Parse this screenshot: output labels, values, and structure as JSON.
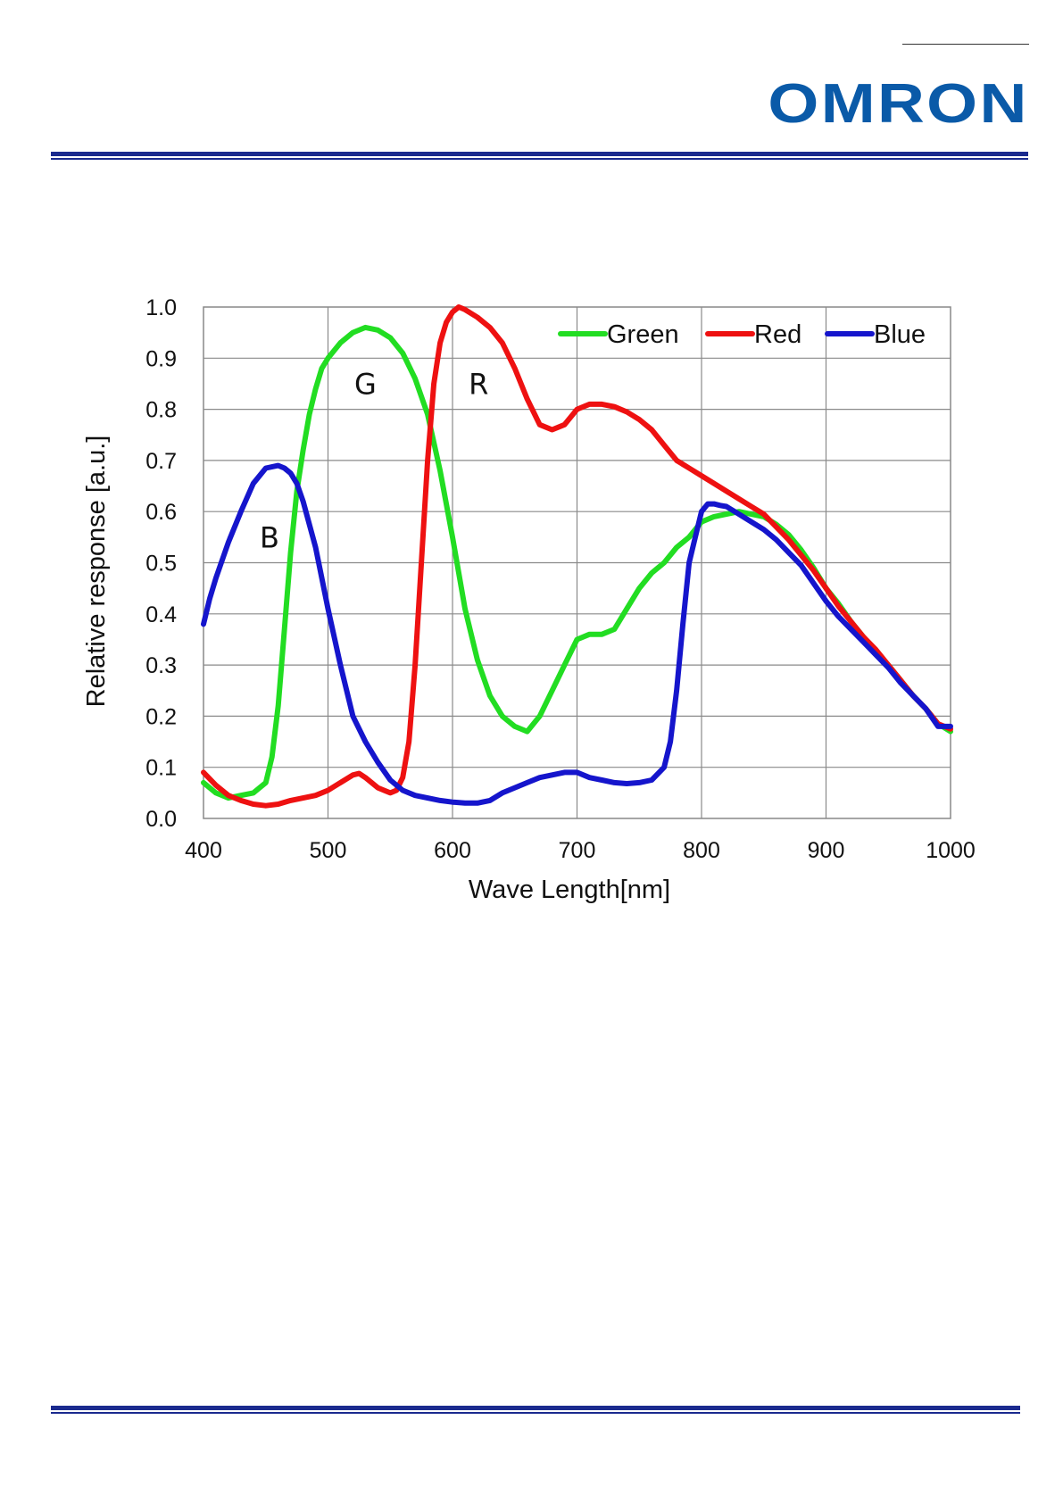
{
  "header": {
    "logo_text": "OMRON",
    "brand_color": "#0a5aa8",
    "band_color": "#1a2a8e"
  },
  "chart_data": {
    "type": "line",
    "title": "",
    "xlabel": "Wave Length[nm]",
    "ylabel": "Relative response [a.u.]",
    "xlim": [
      400,
      1000
    ],
    "ylim": [
      0,
      1.0
    ],
    "xticks": [
      "400",
      "500",
      "600",
      "700",
      "800",
      "900",
      "1000"
    ],
    "yticks": [
      "0.0",
      "0.1",
      "0.2",
      "0.3",
      "0.4",
      "0.5",
      "0.6",
      "0.7",
      "0.8",
      "0.9",
      "1.0"
    ],
    "grid": true,
    "legend_position": "top-right",
    "annotations": [
      {
        "text": "B",
        "x": 453,
        "y": 0.53
      },
      {
        "text": "G",
        "x": 530,
        "y": 0.83
      },
      {
        "text": "R",
        "x": 621,
        "y": 0.83
      }
    ],
    "series": [
      {
        "name": "Green",
        "color": "#22dd22",
        "x": [
          400,
          410,
          420,
          430,
          440,
          450,
          455,
          460,
          465,
          470,
          475,
          480,
          485,
          490,
          495,
          500,
          510,
          520,
          530,
          540,
          550,
          560,
          570,
          580,
          590,
          600,
          610,
          620,
          630,
          640,
          650,
          660,
          670,
          680,
          690,
          700,
          710,
          720,
          730,
          740,
          750,
          760,
          770,
          780,
          790,
          800,
          810,
          820,
          830,
          840,
          850,
          860,
          870,
          880,
          890,
          900,
          910,
          920,
          930,
          940,
          950,
          960,
          970,
          980,
          990,
          1000
        ],
        "y": [
          0.07,
          0.05,
          0.04,
          0.045,
          0.05,
          0.07,
          0.12,
          0.22,
          0.37,
          0.52,
          0.64,
          0.72,
          0.79,
          0.84,
          0.88,
          0.9,
          0.93,
          0.95,
          0.96,
          0.955,
          0.94,
          0.91,
          0.86,
          0.79,
          0.68,
          0.55,
          0.41,
          0.31,
          0.24,
          0.2,
          0.18,
          0.17,
          0.2,
          0.25,
          0.3,
          0.35,
          0.36,
          0.36,
          0.37,
          0.41,
          0.45,
          0.48,
          0.5,
          0.53,
          0.55,
          0.58,
          0.59,
          0.595,
          0.6,
          0.595,
          0.59,
          0.575,
          0.555,
          0.525,
          0.49,
          0.45,
          0.42,
          0.385,
          0.355,
          0.325,
          0.3,
          0.27,
          0.24,
          0.215,
          0.185,
          0.17
        ]
      },
      {
        "name": "Red",
        "color": "#ee1111",
        "x": [
          400,
          410,
          420,
          430,
          440,
          450,
          460,
          470,
          480,
          490,
          500,
          510,
          520,
          525,
          530,
          540,
          550,
          555,
          560,
          565,
          570,
          575,
          580,
          585,
          590,
          595,
          600,
          605,
          610,
          620,
          630,
          640,
          650,
          660,
          670,
          680,
          690,
          700,
          710,
          720,
          730,
          740,
          750,
          760,
          770,
          780,
          790,
          800,
          810,
          820,
          830,
          840,
          850,
          860,
          870,
          880,
          890,
          900,
          910,
          920,
          930,
          940,
          950,
          960,
          970,
          980,
          990,
          1000
        ],
        "y": [
          0.09,
          0.065,
          0.045,
          0.035,
          0.028,
          0.025,
          0.028,
          0.035,
          0.04,
          0.045,
          0.055,
          0.07,
          0.085,
          0.088,
          0.08,
          0.06,
          0.05,
          0.055,
          0.08,
          0.15,
          0.3,
          0.5,
          0.7,
          0.85,
          0.93,
          0.97,
          0.99,
          1.0,
          0.995,
          0.98,
          0.96,
          0.93,
          0.88,
          0.82,
          0.77,
          0.76,
          0.77,
          0.8,
          0.81,
          0.81,
          0.805,
          0.795,
          0.78,
          0.76,
          0.73,
          0.7,
          0.685,
          0.67,
          0.655,
          0.64,
          0.625,
          0.61,
          0.595,
          0.57,
          0.545,
          0.515,
          0.485,
          0.45,
          0.415,
          0.385,
          0.355,
          0.33,
          0.3,
          0.27,
          0.24,
          0.215,
          0.185,
          0.175
        ]
      },
      {
        "name": "Blue",
        "color": "#1515cc",
        "x": [
          400,
          405,
          410,
          420,
          430,
          440,
          450,
          460,
          465,
          470,
          475,
          480,
          490,
          500,
          510,
          520,
          530,
          540,
          550,
          560,
          570,
          580,
          590,
          600,
          610,
          620,
          630,
          640,
          650,
          660,
          670,
          680,
          690,
          700,
          710,
          720,
          730,
          740,
          750,
          760,
          770,
          775,
          780,
          785,
          790,
          795,
          800,
          805,
          810,
          815,
          820,
          830,
          840,
          850,
          860,
          870,
          880,
          890,
          900,
          910,
          920,
          930,
          940,
          950,
          960,
          970,
          980,
          990,
          1000
        ],
        "y": [
          0.38,
          0.43,
          0.47,
          0.54,
          0.6,
          0.655,
          0.685,
          0.69,
          0.685,
          0.675,
          0.655,
          0.62,
          0.53,
          0.41,
          0.3,
          0.2,
          0.15,
          0.11,
          0.075,
          0.055,
          0.045,
          0.04,
          0.035,
          0.032,
          0.03,
          0.03,
          0.035,
          0.05,
          0.06,
          0.07,
          0.08,
          0.085,
          0.09,
          0.09,
          0.08,
          0.075,
          0.07,
          0.068,
          0.07,
          0.075,
          0.1,
          0.15,
          0.25,
          0.38,
          0.5,
          0.55,
          0.6,
          0.615,
          0.615,
          0.612,
          0.61,
          0.595,
          0.58,
          0.565,
          0.545,
          0.52,
          0.495,
          0.46,
          0.425,
          0.395,
          0.37,
          0.345,
          0.32,
          0.295,
          0.265,
          0.24,
          0.215,
          0.18,
          0.18
        ]
      }
    ]
  }
}
